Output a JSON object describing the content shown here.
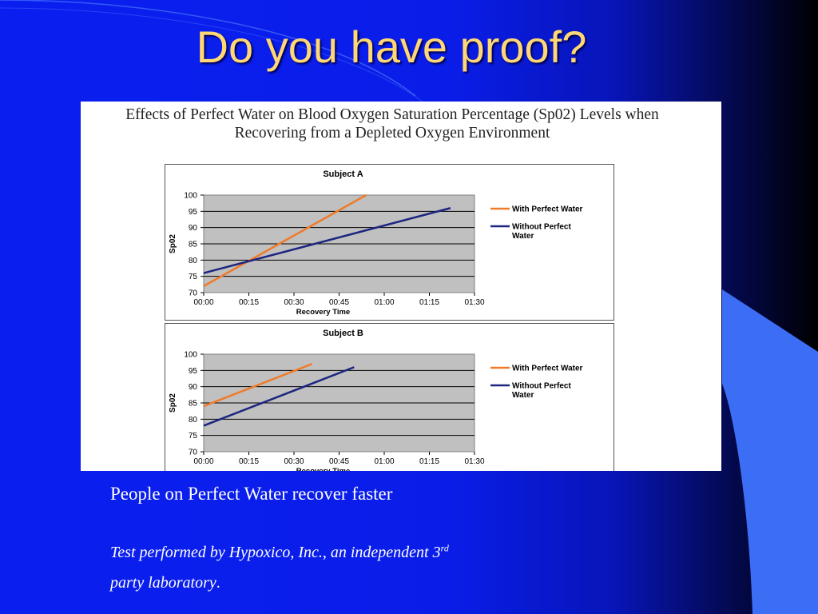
{
  "slide": {
    "title": "Do you have proof?",
    "caption": "People on Perfect Water recover faster",
    "note_line1_pre": "Test performed by Hypoxico, Inc., an independent 3",
    "note_line1_sup": "rd",
    "note_line2": "party laboratory",
    "note_line2_end": "."
  },
  "figure": {
    "title_line1": "Effects of Perfect Water on Blood Oxygen Saturation Percentage (Sp02) Levels when",
    "title_line2": "Recovering from a Depleted Oxygen Environment"
  },
  "colors": {
    "with_water": "#f07a2a",
    "without_water": "#1c2580",
    "plot_bg": "#c0c0c0",
    "title_text": "#ffd875"
  },
  "chart_data": [
    {
      "type": "line",
      "title": "Subject A",
      "xlabel": "Recovery Time",
      "ylabel": "Sp02",
      "x_ticks": [
        "00:00",
        "00:15",
        "00:30",
        "00:45",
        "01:00",
        "01:15",
        "01:30"
      ],
      "x_range_minutes": [
        0,
        90
      ],
      "ylim": [
        70,
        100
      ],
      "y_ticks": [
        70,
        75,
        80,
        85,
        90,
        95,
        100
      ],
      "grid": true,
      "legend": "right",
      "series": [
        {
          "name": "With Perfect Water",
          "color": "#f07a2a",
          "x_minutes": [
            0,
            54
          ],
          "y": [
            72,
            100
          ]
        },
        {
          "name": "Without Perfect Water",
          "color": "#1c2580",
          "x_minutes": [
            0,
            82
          ],
          "y": [
            76,
            96
          ]
        }
      ]
    },
    {
      "type": "line",
      "title": "Subject B",
      "xlabel": "Recovery Time",
      "ylabel": "Sp02",
      "x_ticks": [
        "00:00",
        "00:15",
        "00:30",
        "00:45",
        "01:00",
        "01:15",
        "01:30"
      ],
      "x_range_minutes": [
        0,
        90
      ],
      "ylim": [
        70,
        100
      ],
      "y_ticks": [
        70,
        75,
        80,
        85,
        90,
        95,
        100
      ],
      "grid": true,
      "legend": "right",
      "series": [
        {
          "name": "With Perfect Water",
          "color": "#f07a2a",
          "x_minutes": [
            0,
            36
          ],
          "y": [
            84,
            97
          ]
        },
        {
          "name": "Without Perfect Water",
          "color": "#1c2580",
          "x_minutes": [
            0,
            50
          ],
          "y": [
            78,
            96
          ]
        }
      ]
    }
  ]
}
